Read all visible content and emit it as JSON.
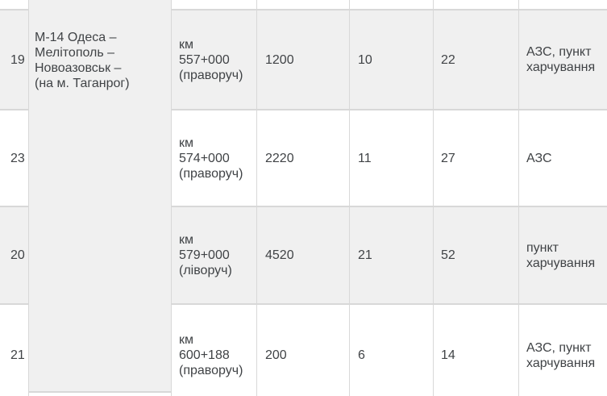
{
  "table": {
    "road_name": "М-14 Одеса –\nМелітополь –\nНовоазовськ –\n(на м. Таганрог)",
    "rows": [
      {
        "num": "19",
        "location": "км\n557+000\n(праворуч)",
        "col4_value": "1200",
        "col5_value": "10",
        "col6_value": "22",
        "services": "АЗС, пункт\nхарчування"
      },
      {
        "num": "23",
        "location": "км\n574+000\n(праворуч)",
        "col4_value": "2220",
        "col5_value": "11",
        "col6_value": "27",
        "services": "АЗС"
      },
      {
        "num": "20",
        "location": "км\n579+000\n(ліворуч)",
        "col4_value": "4520",
        "col5_value": "21",
        "col6_value": "52",
        "services": "пункт\nхарчування"
      },
      {
        "num": "21",
        "location": "км\n600+188\n(праворуч)",
        "col4_value": "200",
        "col5_value": "6",
        "col6_value": "14",
        "services": "АЗС, пункт\nхарчування"
      }
    ],
    "colors": {
      "row_stripe": "#f0f0f0",
      "grid_line": "#d8d8d8",
      "text": "#404346"
    }
  }
}
